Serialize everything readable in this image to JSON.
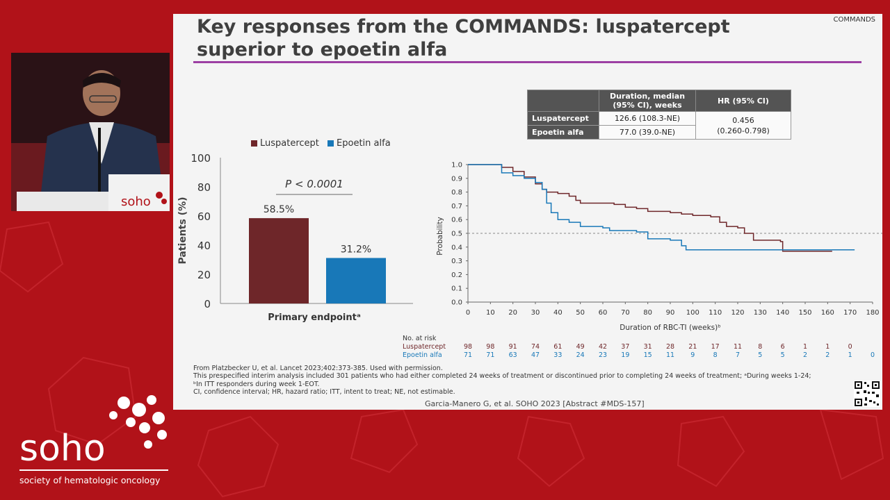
{
  "slide": {
    "title": "Key responses from the COMMANDS: luspatercept superior to epoetin alfa",
    "tag": "COMMANDS"
  },
  "podium": {
    "sign": "soho"
  },
  "legend": [
    {
      "label": "Luspatercept",
      "color": "#6e2629"
    },
    {
      "label": "Epoetin alfa",
      "color": "#1878b8"
    }
  ],
  "colors": {
    "luspatercept": "#6e2629",
    "epoetin": "#1878b8",
    "accent_rule": "#9c3fa3"
  },
  "chart_data": [
    {
      "type": "bar",
      "ylabel": "Patients (%)",
      "xlabel": "Primary endpointᵃ",
      "ylim": [
        0,
        100
      ],
      "yticks": [
        0,
        20,
        40,
        60,
        80,
        100
      ],
      "series": [
        {
          "name": "Luspatercept",
          "value": 58.5,
          "label": "58.5%"
        },
        {
          "name": "Epoetin alfa",
          "value": 31.2,
          "label": "31.2%"
        }
      ],
      "annotation": "P < 0.0001",
      "grid": false
    },
    {
      "type": "line",
      "xlabel": "Duration of RBC-TI (weeks)ᵇ",
      "ylabel": "Probability",
      "xlim": [
        0,
        180
      ],
      "ylim": [
        0,
        1.0
      ],
      "xticks": [
        0,
        10,
        20,
        30,
        40,
        50,
        60,
        70,
        80,
        90,
        100,
        110,
        120,
        130,
        140,
        150,
        160,
        170,
        180
      ],
      "yticks": [
        0,
        0.1,
        0.2,
        0.3,
        0.4,
        0.5,
        0.6,
        0.7,
        0.8,
        0.9,
        1.0
      ],
      "reference_line": 0.5,
      "series": [
        {
          "name": "Luspatercept",
          "points": [
            [
              0,
              1.0
            ],
            [
              12,
              1.0
            ],
            [
              15,
              0.98
            ],
            [
              20,
              0.95
            ],
            [
              25,
              0.91
            ],
            [
              30,
              0.86
            ],
            [
              33,
              0.82
            ],
            [
              35,
              0.8
            ],
            [
              40,
              0.79
            ],
            [
              45,
              0.77
            ],
            [
              48,
              0.74
            ],
            [
              50,
              0.72
            ],
            [
              60,
              0.72
            ],
            [
              65,
              0.71
            ],
            [
              70,
              0.69
            ],
            [
              75,
              0.68
            ],
            [
              80,
              0.66
            ],
            [
              90,
              0.65
            ],
            [
              95,
              0.64
            ],
            [
              100,
              0.63
            ],
            [
              108,
              0.62
            ],
            [
              112,
              0.58
            ],
            [
              115,
              0.55
            ],
            [
              120,
              0.54
            ],
            [
              123,
              0.5
            ],
            [
              127,
              0.45
            ],
            [
              139,
              0.44
            ],
            [
              140,
              0.37
            ],
            [
              162,
              0.37
            ]
          ]
        },
        {
          "name": "Epoetin alfa",
          "points": [
            [
              0,
              1.0
            ],
            [
              12,
              1.0
            ],
            [
              15,
              0.94
            ],
            [
              20,
              0.92
            ],
            [
              25,
              0.9
            ],
            [
              30,
              0.87
            ],
            [
              33,
              0.82
            ],
            [
              35,
              0.72
            ],
            [
              37,
              0.65
            ],
            [
              40,
              0.6
            ],
            [
              45,
              0.58
            ],
            [
              50,
              0.55
            ],
            [
              60,
              0.54
            ],
            [
              63,
              0.52
            ],
            [
              75,
              0.51
            ],
            [
              80,
              0.46
            ],
            [
              90,
              0.45
            ],
            [
              95,
              0.41
            ],
            [
              97,
              0.38
            ],
            [
              120,
              0.38
            ],
            [
              172,
              0.38
            ]
          ]
        }
      ],
      "at_risk": {
        "title": "No. at risk",
        "rows": [
          {
            "name": "Luspatercept",
            "values": [
              "98",
              "98",
              "91",
              "74",
              "61",
              "49",
              "42",
              "37",
              "31",
              "28",
              "21",
              "17",
              "11",
              "8",
              "6",
              "1",
              "1",
              "0"
            ]
          },
          {
            "name": "Epoetin alfa",
            "values": [
              "71",
              "71",
              "63",
              "47",
              "33",
              "24",
              "23",
              "19",
              "15",
              "11",
              "9",
              "8",
              "7",
              "5",
              "5",
              "2",
              "2",
              "1",
              "0"
            ]
          }
        ]
      }
    }
  ],
  "table": {
    "col_headers": [
      "",
      "Duration, median\n(95% CI), weeks",
      "HR (95% CI)"
    ],
    "rows": [
      {
        "name": "Luspatercept",
        "duration": "126.6 (108.3-NE)"
      },
      {
        "name": "Epoetin alfa",
        "duration": "77.0 (39.0-NE)"
      }
    ],
    "hr": "0.456\n(0.260-0.798)"
  },
  "footnotes": [
    "From Platzbecker U, et al. Lancet 2023;402:373-385. Used with permission.",
    "This prespecified interim analysis included 301 patients who had either completed 24 weeks of treatment or discontinued prior to completing 24 weeks of treatment; ᵃDuring weeks 1-24;",
    "ᵇIn ITT responders during week 1-EOT.",
    "CI, confidence interval; HR, hazard ratio; ITT, intent to treat; NE, not estimable."
  ],
  "citation": "Garcia-Manero G, et al. SOHO 2023 [Abstract #MDS-157]",
  "logo": {
    "wordmark": "soho",
    "tagline": "society of hematologic oncology"
  }
}
